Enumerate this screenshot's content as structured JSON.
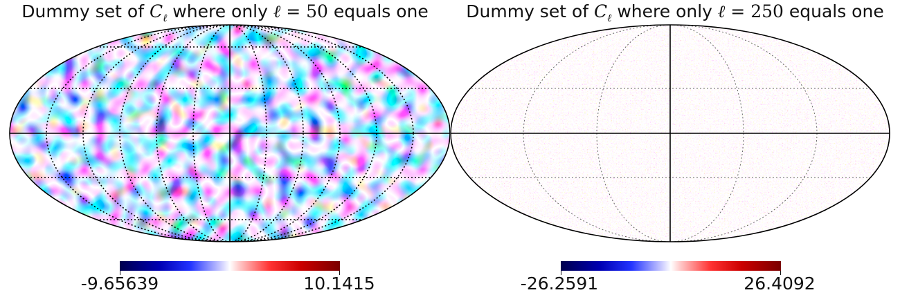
{
  "panels": [
    {
      "title_prefix": "Dummy set of ",
      "title_cl": "C",
      "title_cl_sub": "ℓ",
      "title_middle": " where only ",
      "title_ell": "ℓ = ",
      "title_ell_value": "50",
      "title_suffix": " equals one",
      "colorbar_min": "-9.65639",
      "colorbar_max": "10.1415"
    },
    {
      "title_prefix": "Dummy set of ",
      "title_cl": "C",
      "title_cl_sub": "ℓ",
      "title_middle": " where only ",
      "title_ell": "ℓ = ",
      "title_ell_value": "250",
      "title_suffix": " equals one",
      "colorbar_min": "-26.2591",
      "colorbar_max": "26.4092"
    }
  ],
  "colors": {
    "cmap_low": "#00004d",
    "cmap_mid": "#ffffff",
    "cmap_high": "#7a0000"
  }
}
